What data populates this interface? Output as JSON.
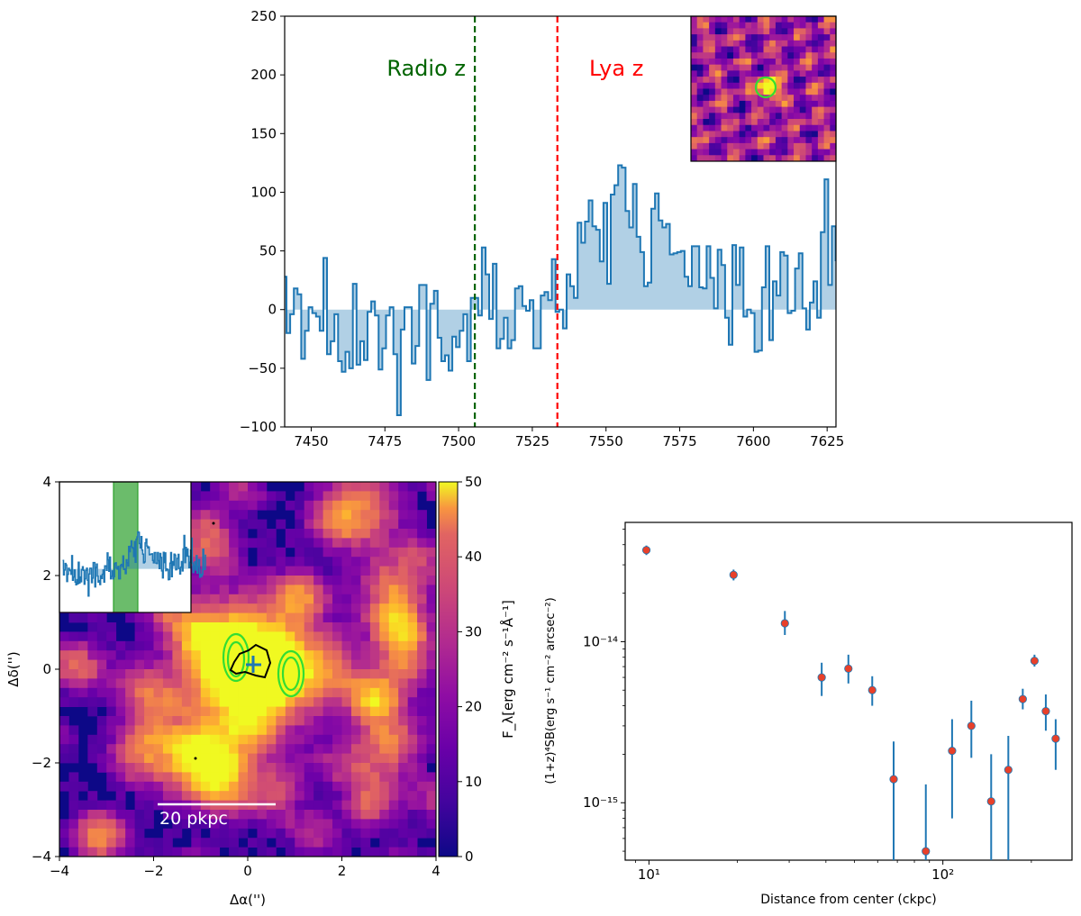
{
  "chart_data": [
    {
      "type": "line",
      "drawstyle": "steps-mid",
      "xlim": [
        7441,
        7628
      ],
      "ylim": [
        -100,
        250
      ],
      "x_ticks": [
        "7450",
        "7475",
        "7500",
        "7525",
        "7550",
        "7575",
        "7600",
        "7625"
      ],
      "y_ticks": [
        "250",
        "200",
        "150",
        "100",
        "50",
        "0",
        "−50",
        "−100"
      ],
      "x_start": 7441,
      "x_step": 1.25,
      "y": [
        28,
        -20,
        -4,
        18,
        13,
        -42,
        -18,
        2,
        -3,
        -6,
        -18,
        44,
        -38,
        -27,
        -4,
        -44,
        -53,
        -36,
        -50,
        22,
        -47,
        -27,
        -43,
        -2,
        7,
        -5,
        -51,
        -33,
        -5,
        2,
        -38,
        -90,
        -17,
        2,
        2,
        -46,
        -31,
        21,
        21,
        -60,
        5,
        16,
        -24,
        -44,
        -39,
        -52,
        -23,
        -32,
        -18,
        -4,
        -44,
        10,
        10,
        -5,
        53,
        30,
        -8,
        39,
        -33,
        -25,
        -7,
        -33,
        -26,
        18,
        20,
        3,
        -1,
        8,
        -33,
        -33,
        12,
        15,
        8,
        43,
        -2,
        0,
        -16,
        30,
        20,
        10,
        74,
        57,
        75,
        93,
        71,
        68,
        41,
        91,
        22,
        98,
        106,
        123,
        121,
        84,
        70,
        107,
        62,
        49,
        20,
        23,
        86,
        99,
        76,
        70,
        73,
        47,
        48,
        49,
        50,
        28,
        20,
        54,
        54,
        19,
        18,
        54,
        27,
        1,
        51,
        38,
        -7,
        -30,
        55,
        21,
        53,
        -6,
        0,
        -3,
        -36,
        -35,
        19,
        54,
        -26,
        24,
        12,
        49,
        46,
        -3,
        -1,
        35,
        48,
        1,
        -17,
        6,
        24,
        -7,
        66,
        111,
        21,
        71,
        42,
        66,
        42,
        4,
        22,
        62,
        102,
        19,
        -12,
        12,
        23,
        -4,
        44,
        -14,
        9,
        31,
        -28,
        -18,
        -25,
        -18,
        65,
        -2,
        -1,
        45
      ],
      "vlines": [
        {
          "x": 7505.5,
          "color": "#006400",
          "label": "Radio z"
        },
        {
          "x": 7533.5,
          "color": "#ff0000",
          "label": "Lya z"
        }
      ]
    },
    {
      "type": "heatmap",
      "xlim": [
        -4,
        4
      ],
      "ylim": [
        -4,
        4
      ],
      "x_ticks": [
        "−4",
        "−2",
        "0",
        "2",
        "4"
      ],
      "y_ticks": [
        "4",
        "2",
        "0",
        "−2",
        "−4"
      ],
      "xlabel": "Δα('')",
      "ylabel": "Δδ('')",
      "colormap": "plasma",
      "colorbar_label": "F_λ[erg cm⁻² s⁻¹Å⁻¹]",
      "colorbar_range": [
        0,
        50
      ],
      "colorbar_ticks": [
        "50",
        "40",
        "30",
        "20",
        "10",
        "0"
      ],
      "scale_bar_label": "20 pkpc",
      "contour_colors": [
        "#33dd33",
        "#000000"
      ],
      "blobs": [
        [
          0,
          0,
          1.0,
          50
        ],
        [
          0.3,
          -0.1,
          0.5,
          40
        ],
        [
          -0.7,
          0.5,
          0.5,
          22
        ],
        [
          -1.2,
          -1.9,
          0.6,
          38
        ],
        [
          -0.6,
          -2.1,
          0.4,
          28
        ],
        [
          2.4,
          3.4,
          0.6,
          30
        ],
        [
          3.1,
          1.7,
          0.5,
          28
        ],
        [
          3.3,
          0.7,
          0.5,
          22
        ],
        [
          1.7,
          0.0,
          0.5,
          20
        ],
        [
          3.0,
          -1.6,
          0.5,
          28
        ],
        [
          2.7,
          -0.7,
          0.4,
          22
        ],
        [
          -2.2,
          -1.4,
          0.4,
          22
        ],
        [
          0.5,
          -2.6,
          0.5,
          20
        ],
        [
          -0.9,
          3.0,
          0.4,
          22
        ],
        [
          -3.5,
          0.0,
          0.4,
          16
        ],
        [
          2.6,
          -2.8,
          0.4,
          26
        ],
        [
          3.3,
          0.0,
          0.4,
          18
        ],
        [
          -1.8,
          1.5,
          0.35,
          18
        ],
        [
          -3.2,
          -3.6,
          0.4,
          20
        ],
        [
          1.0,
          1.4,
          0.4,
          14
        ],
        [
          -2.4,
          -0.3,
          0.35,
          14
        ]
      ]
    },
    {
      "type": "scatter",
      "xscale": "log",
      "yscale": "log",
      "xlim": [
        8.3,
        275
      ],
      "ylim": [
        4.4e-16,
        5.5e-14
      ],
      "xlabel": "Distance from center (ckpc)",
      "ylabel": "(1+z)⁴SB(erg s⁻¹ cm⁻² arcsec⁻²)",
      "x_ticks": [
        "10¹",
        "10²"
      ],
      "y_ticks": [
        "10⁻¹⁴",
        "10⁻¹⁵"
      ],
      "marker_color": "#e8402a",
      "errorbar_color": "#1f77b4",
      "points": [
        {
          "x": 9.8,
          "y": 3.7e-14,
          "lo": 3.45e-14,
          "hi": 3.95e-14
        },
        {
          "x": 19.4,
          "y": 2.6e-14,
          "lo": 2.4e-14,
          "hi": 2.8e-14
        },
        {
          "x": 29.0,
          "y": 1.3e-14,
          "lo": 1.1e-14,
          "hi": 1.55e-14
        },
        {
          "x": 38.7,
          "y": 6e-15,
          "lo": 4.6e-15,
          "hi": 7.4e-15
        },
        {
          "x": 47.7,
          "y": 6.8e-15,
          "lo": 5.5e-15,
          "hi": 8.3e-15
        },
        {
          "x": 57.5,
          "y": 5e-15,
          "lo": 4e-15,
          "hi": 6.1e-15
        },
        {
          "x": 68.0,
          "y": 1.4e-15,
          "lo": 4.4e-16,
          "hi": 2.4e-15
        },
        {
          "x": 87.5,
          "y": 5e-16,
          "lo": 4.4e-16,
          "hi": 1.3e-15
        },
        {
          "x": 107.5,
          "y": 2.1e-15,
          "lo": 8e-16,
          "hi": 3.3e-15
        },
        {
          "x": 125.0,
          "y": 3e-15,
          "lo": 1.9e-15,
          "hi": 4.3e-15
        },
        {
          "x": 146.0,
          "y": 1.02e-15,
          "lo": 4.4e-16,
          "hi": 2e-15
        },
        {
          "x": 167.0,
          "y": 1.6e-15,
          "lo": 4.4e-16,
          "hi": 2.6e-15
        },
        {
          "x": 187.0,
          "y": 4.4e-15,
          "lo": 3.8e-15,
          "hi": 5.1e-15
        },
        {
          "x": 205.0,
          "y": 7.6e-15,
          "lo": 7e-15,
          "hi": 8.3e-15
        },
        {
          "x": 224.0,
          "y": 3.7e-15,
          "lo": 2.8e-15,
          "hi": 4.7e-15
        },
        {
          "x": 242.0,
          "y": 2.5e-15,
          "lo": 1.6e-15,
          "hi": 3.3e-15
        }
      ]
    }
  ]
}
